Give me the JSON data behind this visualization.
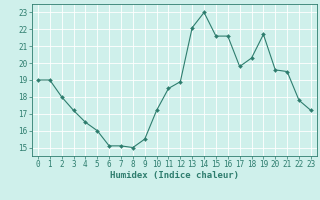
{
  "x": [
    0,
    1,
    2,
    3,
    4,
    5,
    6,
    7,
    8,
    9,
    10,
    11,
    12,
    13,
    14,
    15,
    16,
    17,
    18,
    19,
    20,
    21,
    22,
    23
  ],
  "y": [
    19.0,
    19.0,
    18.0,
    17.2,
    16.5,
    16.0,
    15.1,
    15.1,
    15.0,
    15.5,
    17.2,
    18.5,
    18.9,
    22.1,
    23.0,
    21.6,
    21.6,
    19.8,
    20.3,
    21.7,
    19.6,
    19.5,
    17.8,
    17.2
  ],
  "line_color": "#2e7d6e",
  "marker": "D",
  "marker_size": 2.0,
  "bg_color": "#cff0eb",
  "grid_color": "#ffffff",
  "tick_color": "#2e7d6e",
  "label_color": "#2e7d6e",
  "xlabel": "Humidex (Indice chaleur)",
  "ylim": [
    14.5,
    23.5
  ],
  "xlim": [
    -0.5,
    23.5
  ],
  "yticks": [
    15,
    16,
    17,
    18,
    19,
    20,
    21,
    22,
    23
  ],
  "xticks": [
    0,
    1,
    2,
    3,
    4,
    5,
    6,
    7,
    8,
    9,
    10,
    11,
    12,
    13,
    14,
    15,
    16,
    17,
    18,
    19,
    20,
    21,
    22,
    23
  ],
  "tick_fontsize": 5.5,
  "xlabel_fontsize": 6.5,
  "linewidth": 0.8,
  "spine_color": "#2e7d6e",
  "spine_linewidth": 0.6
}
